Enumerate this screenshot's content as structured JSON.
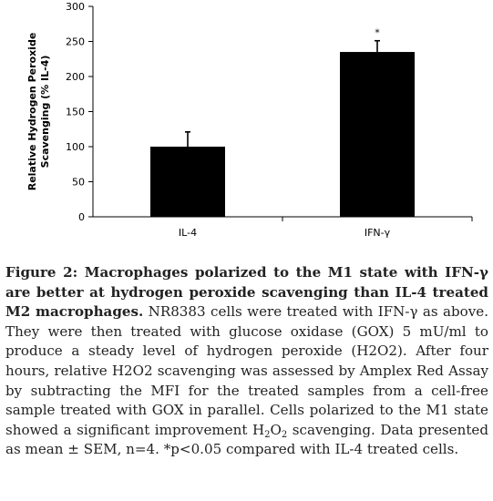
{
  "chart_data": {
    "type": "bar",
    "title": "",
    "xlabel": "",
    "ylabel": "Relative Hydrogen Peroxide Scavenging (% IL-4)",
    "ylabel_lines": [
      "Relative Hydrogen Peroxide",
      "Scavenging (% IL-4)"
    ],
    "categories": [
      "IL-4",
      "IFN-γ"
    ],
    "values": [
      100,
      235
    ],
    "errors": [
      21,
      16
    ],
    "annotations": [
      "",
      "*"
    ],
    "ylim": [
      0,
      300
    ],
    "yticks": [
      0,
      50,
      100,
      150,
      200,
      250,
      300
    ],
    "grid": false,
    "legend": "none",
    "bar_color": "#000000"
  },
  "caption": {
    "title": "Figure 2: Macrophages polarized to the M1 state with IFN-γ are better at hydrogen peroxide scavenging than IL-4 treated M2 macrophages.",
    "body_part1": " NR8383 cells were treated with IFN-γ as above. They were then treated with glucose oxidase (GOX) 5 mU/ml to produce a steady level of hydrogen peroxide (H2O2). After four hours, relative H2O2 scavenging was assessed by Amplex Red Assay by subtracting the MFI for the treated samples from a cell-free sample treated with GOX in parallel. Cells polarized to the M1 state showed a significant improvement ",
    "h2o2": {
      "h1": "H",
      "sub1": "2",
      "o": "O",
      "sub2": "2"
    },
    "body_part2": " scavenging. Data presented as mean ± SEM, n=4. *p<0.05 compared with IL-4 treated cells."
  }
}
